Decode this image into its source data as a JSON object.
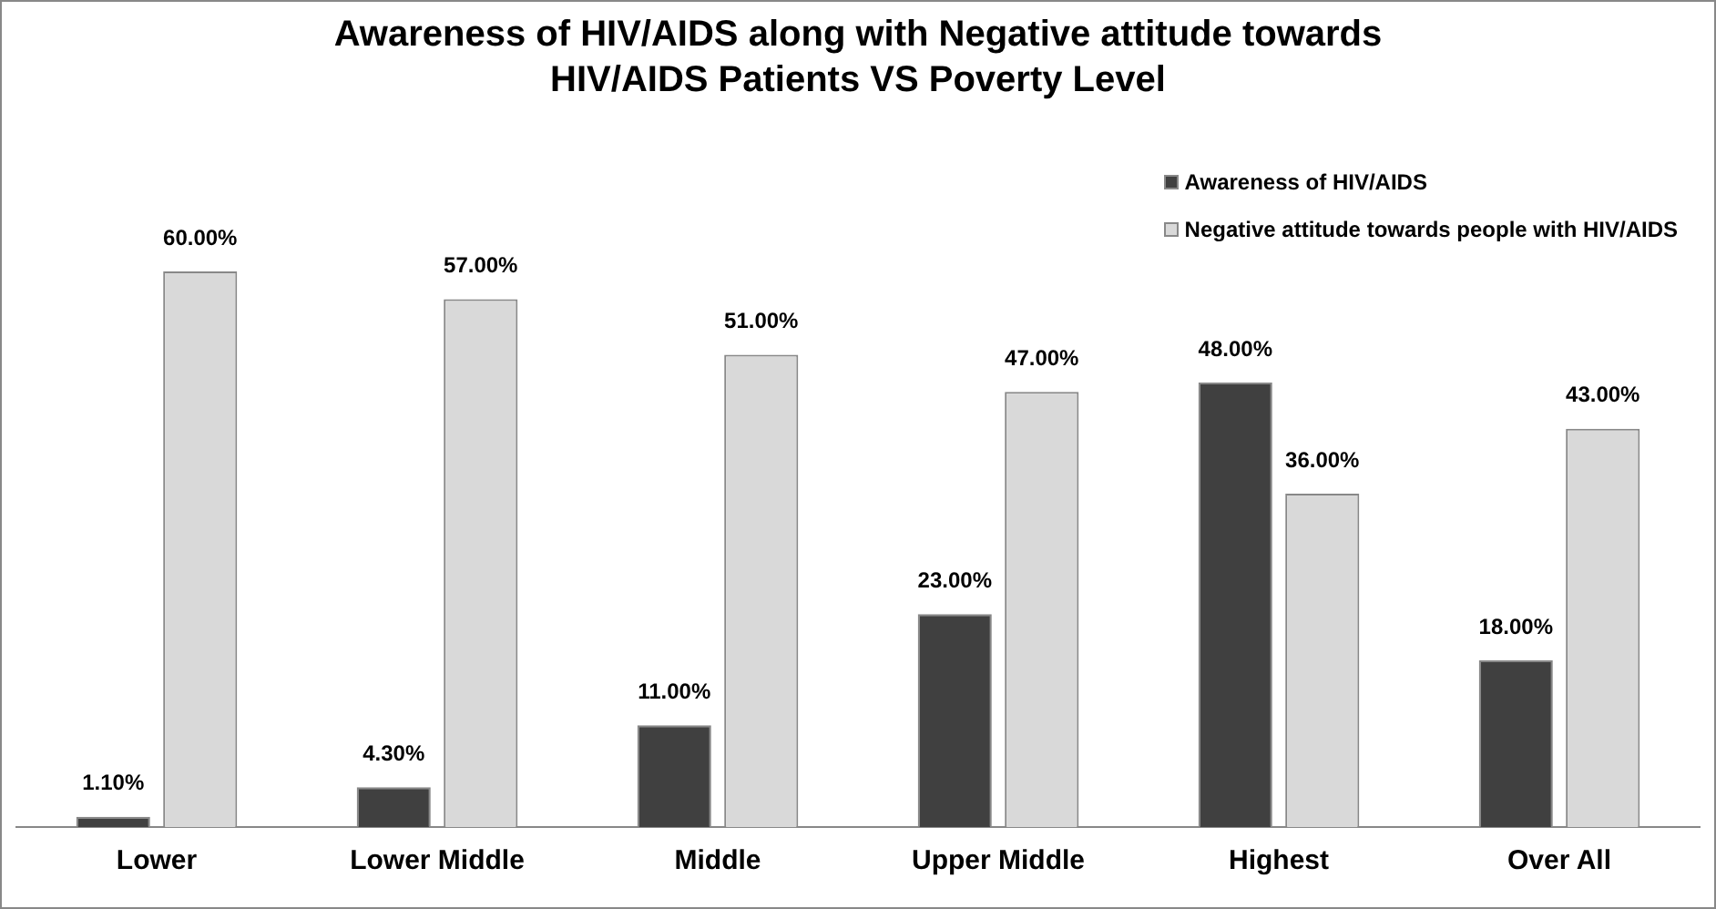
{
  "chart_data": {
    "type": "bar",
    "title": "Awareness of HIV/AIDS along with Negative attitude towards\nHIV/AIDS Patients VS Poverty Level",
    "categories": [
      "Lower",
      "Lower Middle",
      "Middle",
      "Upper Middle",
      "Highest",
      "Over All"
    ],
    "series": [
      {
        "name": "Awareness of HIV/AIDS",
        "color": "#404040",
        "values": [
          1.1,
          4.3,
          11,
          23,
          48,
          18
        ],
        "value_labels": [
          "1.10%",
          "4.30%",
          "11.00%",
          "23.00%",
          "48.00%",
          "18.00%"
        ]
      },
      {
        "name": "Negative attitude towards people with HIV/AIDS",
        "color": "#d9d9d9",
        "values": [
          60,
          57,
          51,
          47,
          36,
          43
        ],
        "value_labels": [
          "60.00%",
          "57.00%",
          "51.00%",
          "47.00%",
          "36.00%",
          "43.00%"
        ]
      }
    ],
    "grid": false,
    "legend": "top right"
  }
}
